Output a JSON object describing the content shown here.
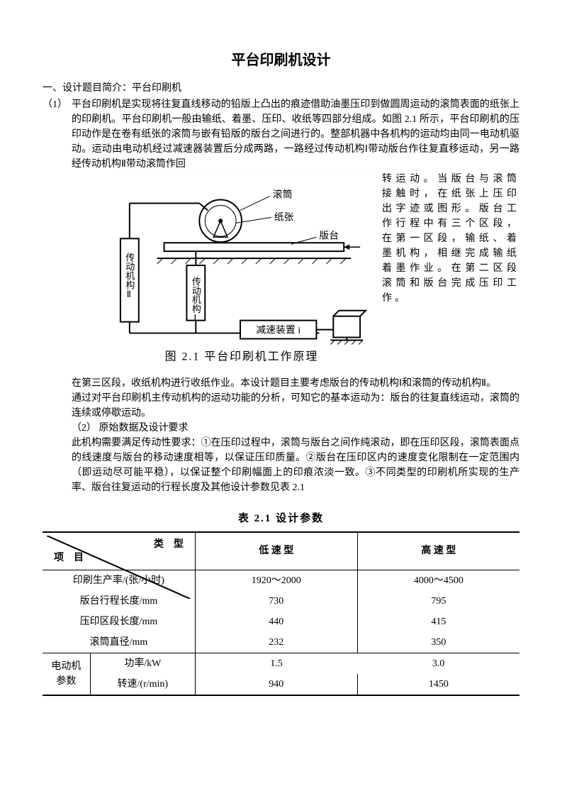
{
  "title": "平台印刷机设计",
  "section1_head": "一、设计题目简介：平台印刷机",
  "item1_num": "（1）",
  "item1_text_a": "平台印刷机是实现将往复直线移动的铅版上凸出的痕迹借助油墨压印到做圆周运动的滚筒表面的纸张上的印刷机。平台印刷机一般由输纸、着墨、压印、收纸等四部分组成。如图 2.1 所示，平台印刷机的压印动作是在卷有纸张的滚筒与嵌有铅版的版台之间进行的。整部机器中各机构的运动均由同一电动机驱动。运动由电动机经过减速器装置后分成两路，一路经过传动机构Ⅰ带动版台作往复直移运动，另一路经传动机构Ⅱ带动滚筒作回",
  "side_text": "转运动。当版台与滚筒接触时，在纸张上压印出字迹或图形。版台工作行程中有三个区段，在第一区段，输纸、着墨机构，相继完成输纸着墨作业。在第二区段滚筒和版台完成压印工作。",
  "after_fig_a": "在第三区段，收纸机构进行收纸作业。本设计题目主要考虑版台的传动机构Ⅰ和滚筒的传动机构Ⅱ。",
  "after_fig_b": "通过对平台印刷机主传动机构的运动功能的分析，可知它的基本运动为：版台的往复直线运动，滚筒的连续或停歇运动。",
  "item2_line": "（2）  原始数据及设计要求",
  "req_text": "此机构需要满足传动性要求：①在压印过程中，滚筒与版台之间作纯滚动，即在压印区段，滚筒表面点的线速度与版台的移动速度相等，以保证压印质量。②版台在压印区内的速度变化限制在一定范围内（即运动尽可能平稳），以保证整个印刷幅面上的印痕浓淡一致。③不同类型的印刷机所实现的生产率、版台往复运动的行程长度及其他设计参数见表 2.1",
  "figure": {
    "caption": "图 2.1  平台印刷机工作原理",
    "labels": {
      "roller": "滚筒",
      "paper": "纸张",
      "platform": "版台",
      "mech2": "传动机构Ⅱ",
      "mech1": "传动机构Ⅰ",
      "reducer": "减速装置 i"
    },
    "colors": {
      "stroke": "#000000",
      "bg": "#ffffff",
      "shade": "#efefef"
    }
  },
  "table": {
    "title": "表 2.1  设计参数",
    "corner_top": "类　型",
    "corner_bottom": "项　目",
    "col_low": "低 速 型",
    "col_high": "高 速 型",
    "rows": [
      {
        "label": "印刷生产率/(张/小时)",
        "low": "1920～2000",
        "high": "4000～4500"
      },
      {
        "label": "版台行程长度/mm",
        "low": "730",
        "high": "795"
      },
      {
        "label": "压印区段长度/mm",
        "low": "440",
        "high": "415"
      },
      {
        "label": "滚筒直径/mm",
        "low": "232",
        "high": "350"
      }
    ],
    "motor_group": "电动机参数",
    "motor_rows": [
      {
        "label": "功率/kW",
        "low": "1.5",
        "high": "3.0"
      },
      {
        "label": "转速/(r/min)",
        "low": "940",
        "high": "1450"
      }
    ]
  }
}
